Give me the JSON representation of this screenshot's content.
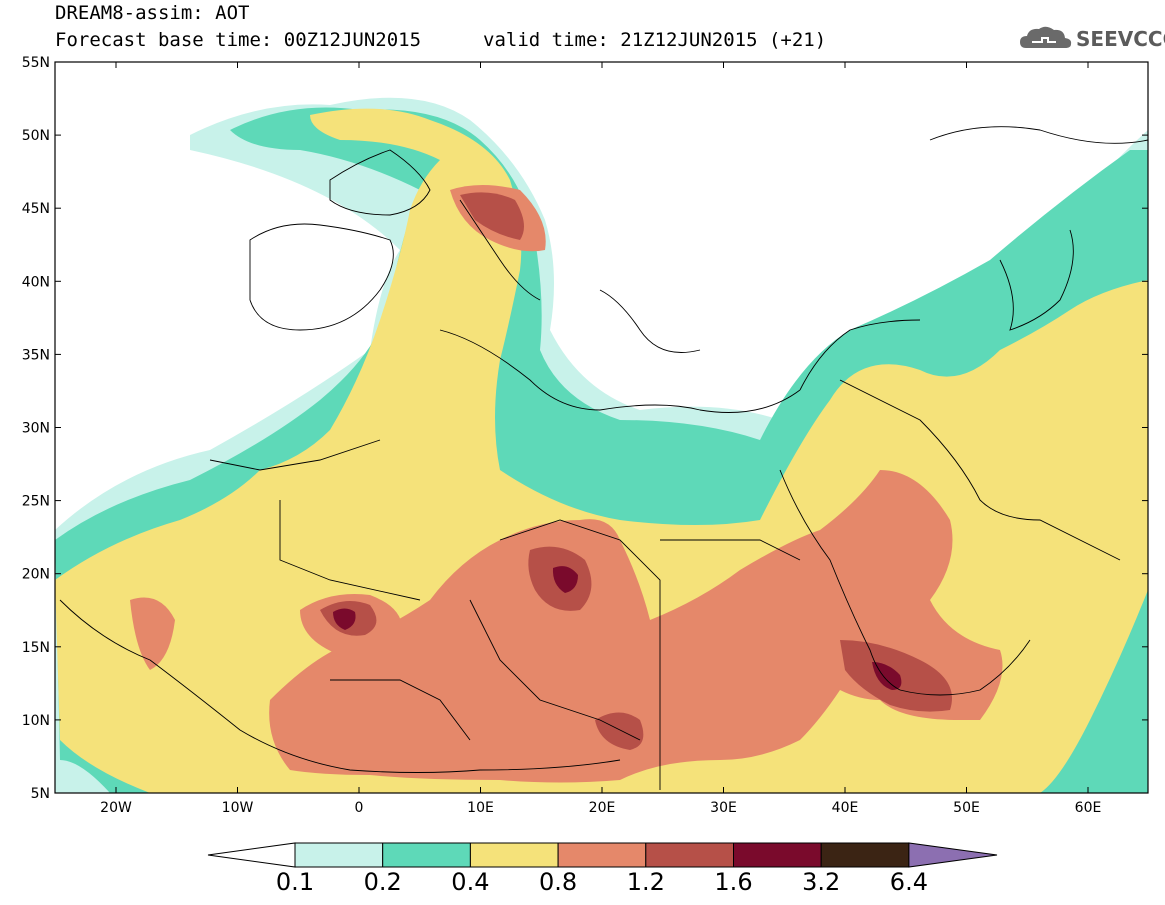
{
  "header": {
    "title": "DREAM8-assim: AOT",
    "forecast_base": "Forecast base time: 00Z12JUN2015",
    "valid_time": "valid time: 21Z12JUN2015 (+21)",
    "logo_text": "SEEVCCC"
  },
  "axes": {
    "lat_labels": [
      "55N",
      "50N",
      "45N",
      "40N",
      "35N",
      "30N",
      "25N",
      "20N",
      "15N",
      "10N",
      "5N"
    ],
    "lon_labels": [
      "20W",
      "10W",
      "0",
      "10E",
      "20E",
      "30E",
      "40E",
      "50E",
      "60E"
    ]
  },
  "colorbar": {
    "labels": [
      "0.1",
      "0.2",
      "0.4",
      "0.8",
      "1.2",
      "1.6",
      "3.2",
      "6.4"
    ],
    "colors": [
      "#ffffff",
      "#c8f2ea",
      "#5ed9b8",
      "#f5e27a",
      "#e5886a",
      "#b65048",
      "#7a0a2c",
      "#3b2414",
      "#8c6fb1"
    ]
  },
  "colors": {
    "c01": "#c8f2ea",
    "c02": "#5ed9b8",
    "c04": "#f5e27a",
    "c08": "#e5886a",
    "c12": "#b65048",
    "c16": "#7a0a2c"
  }
}
